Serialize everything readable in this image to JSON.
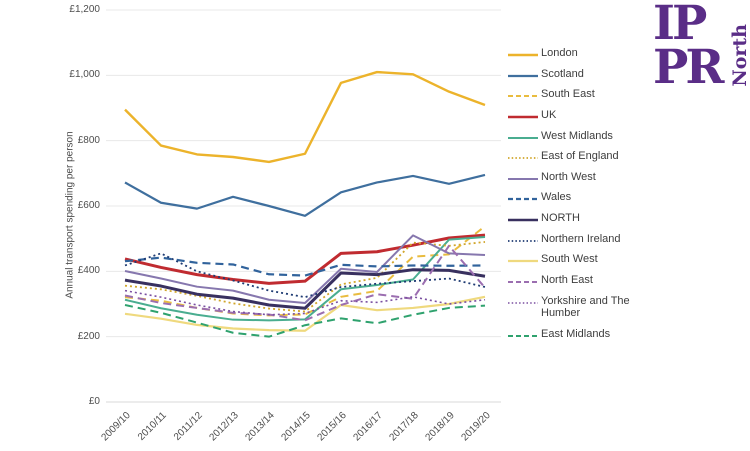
{
  "logo": {
    "line1": "IP",
    "line2": "PR",
    "vertical": "North",
    "color": "#5A2D87"
  },
  "chart_data": {
    "type": "line",
    "title": "",
    "xlabel": "",
    "ylabel": "Annual transport spending per person",
    "ylim": [
      0,
      1200
    ],
    "ytick_step": 200,
    "yticks": [
      "£0",
      "£200",
      "£400",
      "£600",
      "£800",
      "£1,000",
      "£1,200"
    ],
    "grid": "horizontal",
    "legend_position": "right",
    "categories": [
      "2009/10",
      "2010/11",
      "2011/12",
      "2012/13",
      "2013/14",
      "2014/15",
      "2015/16",
      "2016/17",
      "2017/18",
      "2018/19",
      "2019/20"
    ],
    "series": [
      {
        "name": "London",
        "color": "#ECB32B",
        "dash": "solid",
        "width": 2.4,
        "values": [
          895,
          785,
          758,
          750,
          735,
          760,
          977,
          1010,
          1003,
          950,
          909
        ]
      },
      {
        "name": "Scotland",
        "color": "#3F6F9E",
        "dash": "solid",
        "width": 2.2,
        "values": [
          672,
          610,
          592,
          628,
          600,
          570,
          642,
          672,
          692,
          668,
          695
        ]
      },
      {
        "name": "South East",
        "color": "#E9BC3F",
        "dash": "dashed",
        "width": 2.0,
        "values": [
          321,
          310,
          288,
          271,
          265,
          268,
          322,
          340,
          445,
          452,
          538
        ]
      },
      {
        "name": "UK",
        "color": "#C02B30",
        "dash": "solid",
        "width": 3.0,
        "values": [
          438,
          412,
          390,
          375,
          363,
          370,
          455,
          460,
          480,
          502,
          511
        ]
      },
      {
        "name": "West Midlands",
        "color": "#4AAD90",
        "dash": "solid",
        "width": 2.0,
        "values": [
          313,
          287,
          267,
          252,
          250,
          253,
          345,
          358,
          375,
          497,
          505
        ]
      },
      {
        "name": "East of England",
        "color": "#D1A62B",
        "dash": "dotted",
        "width": 1.8,
        "values": [
          356,
          345,
          325,
          302,
          286,
          277,
          360,
          380,
          488,
          478,
          490
        ]
      },
      {
        "name": "North West",
        "color": "#8677AE",
        "dash": "solid",
        "width": 2.0,
        "values": [
          401,
          378,
          353,
          341,
          313,
          303,
          408,
          398,
          510,
          455,
          450
        ]
      },
      {
        "name": "Wales",
        "color": "#31639C",
        "dash": "dashed",
        "width": 2.2,
        "values": [
          431,
          442,
          426,
          421,
          391,
          387,
          420,
          415,
          418,
          417,
          418
        ]
      },
      {
        "name": "NORTH",
        "color": "#38305F",
        "dash": "solid",
        "width": 3.0,
        "values": [
          373,
          355,
          330,
          318,
          297,
          287,
          395,
          390,
          405,
          403,
          385
        ]
      },
      {
        "name": "Northern Ireland",
        "color": "#1F3B73",
        "dash": "dotted",
        "width": 1.8,
        "values": [
          418,
          455,
          400,
          372,
          341,
          321,
          352,
          362,
          370,
          378,
          352
        ]
      },
      {
        "name": "South West",
        "color": "#EFD97E",
        "dash": "solid",
        "width": 2.2,
        "values": [
          270,
          255,
          236,
          225,
          220,
          218,
          297,
          281,
          288,
          300,
          322
        ]
      },
      {
        "name": "North East",
        "color": "#9B6EB0",
        "dash": "dashed",
        "width": 2.0,
        "values": [
          326,
          303,
          288,
          273,
          268,
          250,
          297,
          330,
          316,
          478,
          350
        ]
      },
      {
        "name": "Yorkshire and The Humber",
        "color": "#7A4FA0",
        "dash": "dotted",
        "width": 1.6,
        "values": [
          341,
          321,
          297,
          277,
          267,
          271,
          310,
          305,
          322,
          300,
          313
        ]
      },
      {
        "name": "East Midlands",
        "color": "#2FA26E",
        "dash": "dashed",
        "width": 2.0,
        "values": [
          297,
          273,
          243,
          212,
          200,
          235,
          256,
          241,
          267,
          288,
          295
        ]
      }
    ]
  }
}
